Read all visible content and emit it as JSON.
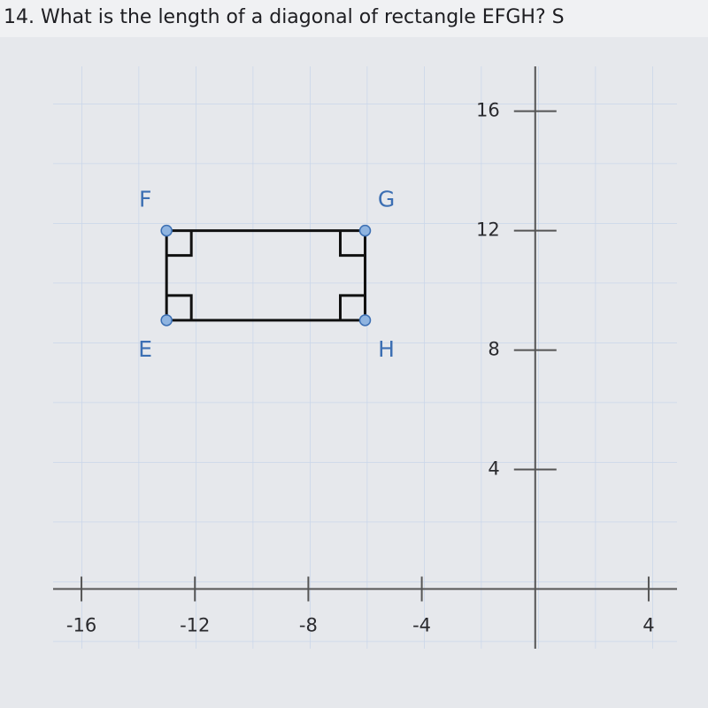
{
  "chart_data": {
    "type": "scatter",
    "title": "14. What is the length of a diagonal of rectangle EFGH? S",
    "x": [
      -13,
      -13,
      -6,
      -6
    ],
    "values": [
      9,
      12,
      12,
      9
    ],
    "point_labels": [
      "E",
      "F",
      "G",
      "H"
    ],
    "closed": true,
    "color": "#111111",
    "point_color": "#8fb4e0",
    "xlim": [
      -17,
      5
    ],
    "ylim": [
      -2,
      17.5
    ],
    "xticks": [
      -16,
      -12,
      -8,
      -4,
      4
    ],
    "yticks": [
      4,
      8,
      12,
      16
    ],
    "grid": true
  }
}
